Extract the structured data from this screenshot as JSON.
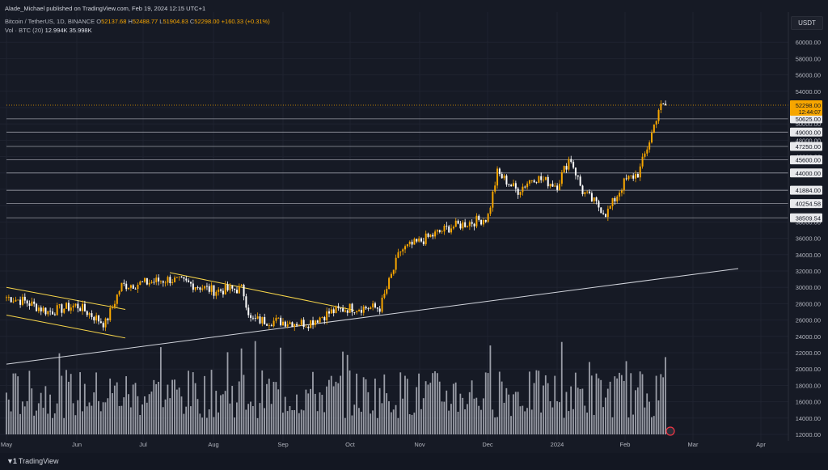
{
  "header": {
    "published": "Alade_Michael published on TradingView.com, Feb 19, 2024 12:15 UTC+1",
    "symbol": "Bitcoin / TetherUS, 1D, BINANCE",
    "ohlc": {
      "o_label": "O",
      "o": "52137.68",
      "h_label": "H",
      "h": "52488.77",
      "l_label": "L",
      "l": "51904.83",
      "c_label": "C",
      "c": "52298.00",
      "change": "+160.33 (+0.31%)"
    },
    "volume_label": "Vol · BTC (20)",
    "volume_value": "12.994K",
    "volume_ma": "35.998K"
  },
  "currency": "USDT",
  "footer": {
    "logo_text": "TradingView"
  },
  "colors": {
    "background": "#161a25",
    "candle_up": "#f7a600",
    "candle_down": "#ffffff",
    "price_tag": "#f7a600",
    "level_line": "#9598a1",
    "volume": "#b2b5be",
    "trend_white": "#d1d4dc",
    "trend_yellow": "#f7d54a"
  },
  "chart_data": {
    "type": "candlestick",
    "symbol": "BTCUSDT",
    "interval": "1D",
    "ylim": [
      12000,
      62000
    ],
    "y_ticks": [
      "12000.00",
      "14000.00",
      "16000.00",
      "18000.00",
      "20000.00",
      "22000.00",
      "24000.00",
      "26000.00",
      "28000.00",
      "30000.00",
      "32000.00",
      "34000.00",
      "36000.00",
      "38000.00",
      "40000.00",
      "42000.00",
      "44000.00",
      "46000.00",
      "48000.00",
      "50000.00",
      "52000.00",
      "54000.00",
      "56000.00",
      "58000.00",
      "60000.00"
    ],
    "x_ticks": [
      "May",
      "Jun",
      "Jul",
      "Aug",
      "Sep",
      "Oct",
      "Nov",
      "Dec",
      "2024",
      "Feb",
      "Mar",
      "Apr"
    ],
    "horizontal_levels": [
      "50625.00",
      "49000.00",
      "47250.00",
      "45600.00",
      "44000.00",
      "41884.00",
      "40254.58",
      "38509.54"
    ],
    "current_price": {
      "label": "52298.00",
      "countdown": "12:44:07"
    },
    "price_series": [
      {
        "month": "May",
        "close": 28800
      },
      {
        "month": "Jun",
        "close": 27000
      },
      {
        "month": "Jul",
        "close": 30200
      },
      {
        "month": "Aug",
        "close": 29300
      },
      {
        "month": "Sep",
        "close": 25900
      },
      {
        "month": "Oct",
        "close": 26800
      },
      {
        "month": "Nov",
        "close": 35000
      },
      {
        "month": "Dec",
        "close": 38000
      },
      {
        "month": "2024",
        "close": 42500
      },
      {
        "month": "Feb",
        "close": 43000
      },
      {
        "month": "Feb",
        "close": 52298
      }
    ],
    "trendlines": [
      {
        "color": "white",
        "from": {
          "month": "May",
          "price": 20600
        },
        "to": {
          "month": "Mar",
          "price": 32300
        }
      },
      {
        "color": "yellow",
        "from": {
          "month": "May",
          "price": 30000
        },
        "to": {
          "month": "Jun",
          "price": 27300
        }
      },
      {
        "color": "yellow",
        "from": {
          "month": "May",
          "price": 26600
        },
        "to": {
          "month": "Jun",
          "price": 23800
        }
      },
      {
        "color": "yellow",
        "from": {
          "month": "Jul",
          "price": 31800
        },
        "to": {
          "month": "Oct",
          "price": 27200
        }
      }
    ]
  }
}
